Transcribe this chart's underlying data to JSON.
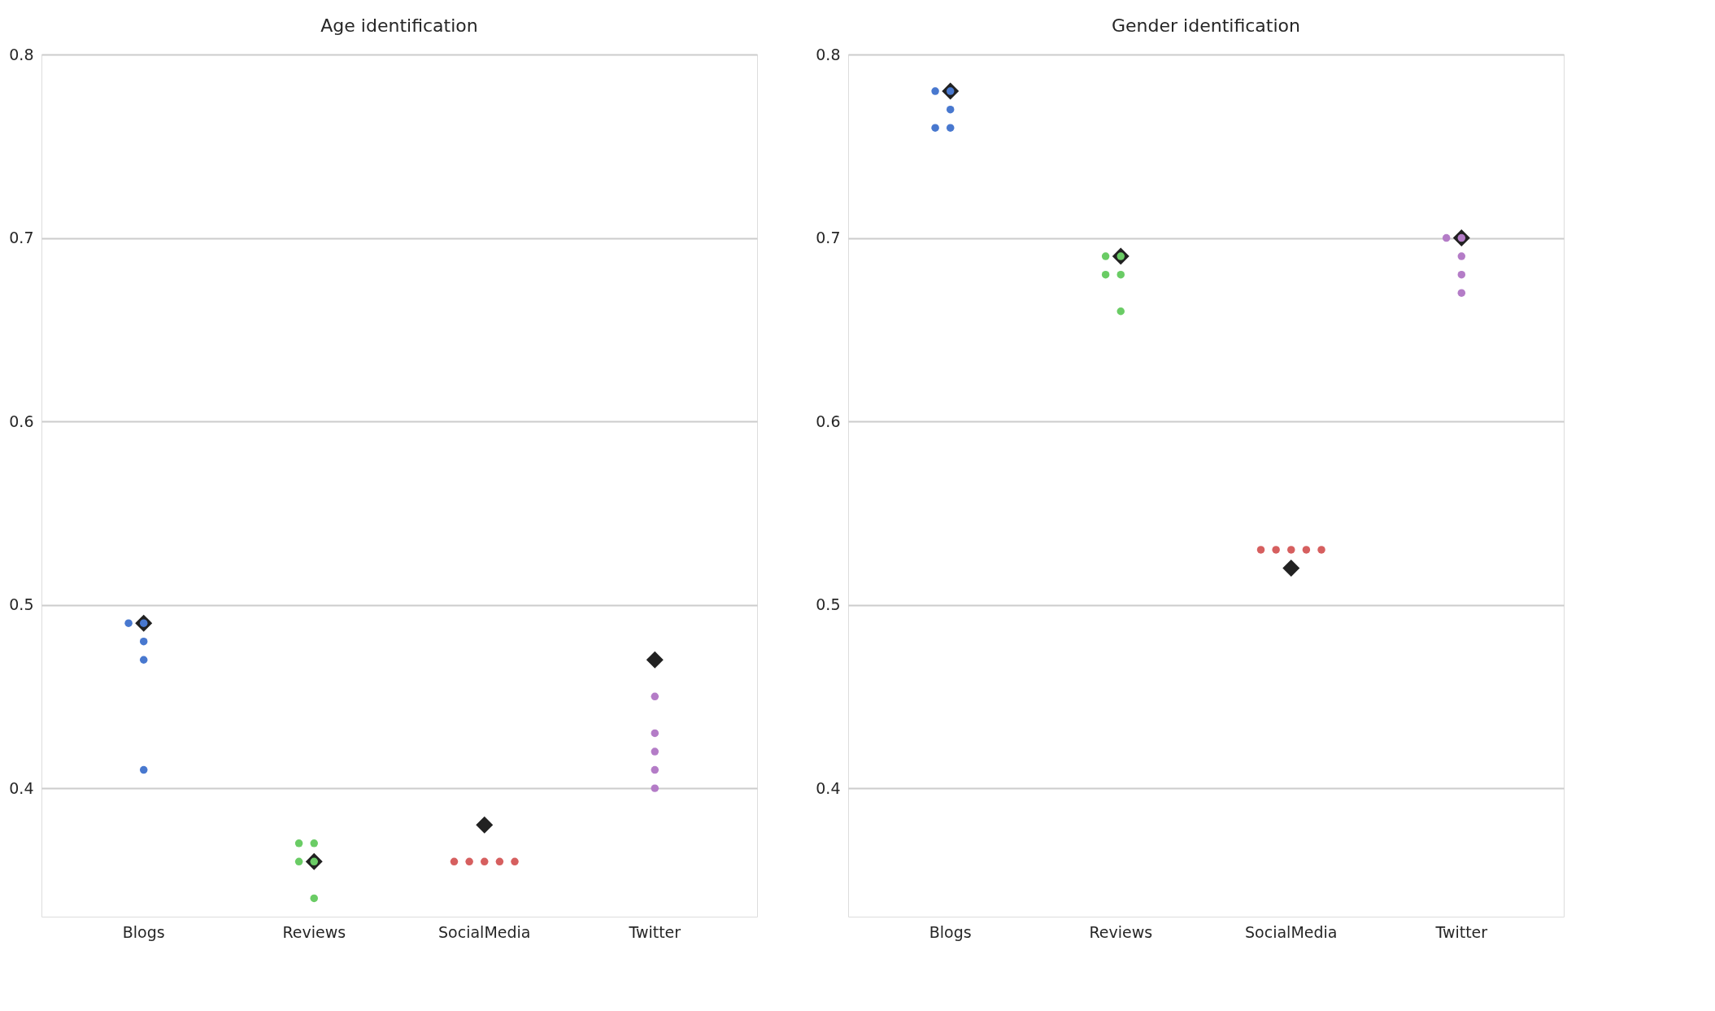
{
  "chart_data": [
    {
      "type": "scatter",
      "title": "Age identification",
      "categories": [
        "Blogs",
        "Reviews",
        "SocialMedia",
        "Twitter"
      ],
      "ylim": [
        0.33,
        0.8
      ],
      "yticks": [
        0.4,
        0.5,
        0.6,
        0.7,
        0.8
      ],
      "grid": "y",
      "series": [
        {
          "marker": "diamond",
          "color": "#222222",
          "x": [
            "Blogs",
            "Reviews",
            "SocialMedia",
            "Twitter"
          ],
          "values": [
            0.49,
            0.36,
            0.38,
            0.47
          ]
        },
        {
          "marker": "circle",
          "x": [
            "Blogs",
            "Blogs",
            "Blogs",
            "Blogs",
            "Blogs",
            "Reviews",
            "Reviews",
            "Reviews",
            "Reviews",
            "Reviews",
            "SocialMedia",
            "SocialMedia",
            "SocialMedia",
            "SocialMedia",
            "SocialMedia",
            "Twitter",
            "Twitter",
            "Twitter",
            "Twitter",
            "Twitter"
          ],
          "values": [
            0.49,
            0.49,
            0.48,
            0.47,
            0.41,
            0.37,
            0.37,
            0.36,
            0.36,
            0.34,
            0.36,
            0.36,
            0.36,
            0.36,
            0.36,
            0.45,
            0.43,
            0.42,
            0.41,
            0.4
          ],
          "colors": [
            "#4878cf",
            "#4878cf",
            "#4878cf",
            "#4878cf",
            "#4878cf",
            "#6acc65",
            "#6acc65",
            "#6acc65",
            "#6acc65",
            "#6acc65",
            "#d65f5f",
            "#d65f5f",
            "#d65f5f",
            "#d65f5f",
            "#d65f5f",
            "#b47cc7",
            "#b47cc7",
            "#b47cc7",
            "#b47cc7",
            "#b47cc7"
          ]
        }
      ]
    },
    {
      "type": "scatter",
      "title": "Gender identification",
      "categories": [
        "Blogs",
        "Reviews",
        "SocialMedia",
        "Twitter"
      ],
      "ylim": [
        0.33,
        0.8
      ],
      "yticks": [
        0.4,
        0.5,
        0.6,
        0.7,
        0.8
      ],
      "grid": "y",
      "series": [
        {
          "marker": "diamond",
          "color": "#222222",
          "x": [
            "Blogs",
            "Reviews",
            "SocialMedia",
            "Twitter"
          ],
          "values": [
            0.78,
            0.69,
            0.52,
            0.7
          ]
        },
        {
          "marker": "circle",
          "x": [
            "Blogs",
            "Blogs",
            "Blogs",
            "Blogs",
            "Blogs",
            "Reviews",
            "Reviews",
            "Reviews",
            "Reviews",
            "Reviews",
            "SocialMedia",
            "SocialMedia",
            "SocialMedia",
            "SocialMedia",
            "SocialMedia",
            "Twitter",
            "Twitter",
            "Twitter",
            "Twitter",
            "Twitter"
          ],
          "values": [
            0.78,
            0.78,
            0.77,
            0.76,
            0.76,
            0.69,
            0.69,
            0.68,
            0.68,
            0.66,
            0.53,
            0.53,
            0.53,
            0.53,
            0.53,
            0.7,
            0.7,
            0.69,
            0.68,
            0.67
          ],
          "colors": [
            "#4878cf",
            "#4878cf",
            "#4878cf",
            "#4878cf",
            "#4878cf",
            "#6acc65",
            "#6acc65",
            "#6acc65",
            "#6acc65",
            "#6acc65",
            "#d65f5f",
            "#d65f5f",
            "#d65f5f",
            "#d65f5f",
            "#d65f5f",
            "#b47cc7",
            "#b47cc7",
            "#b47cc7",
            "#b47cc7",
            "#b47cc7"
          ]
        }
      ]
    }
  ]
}
